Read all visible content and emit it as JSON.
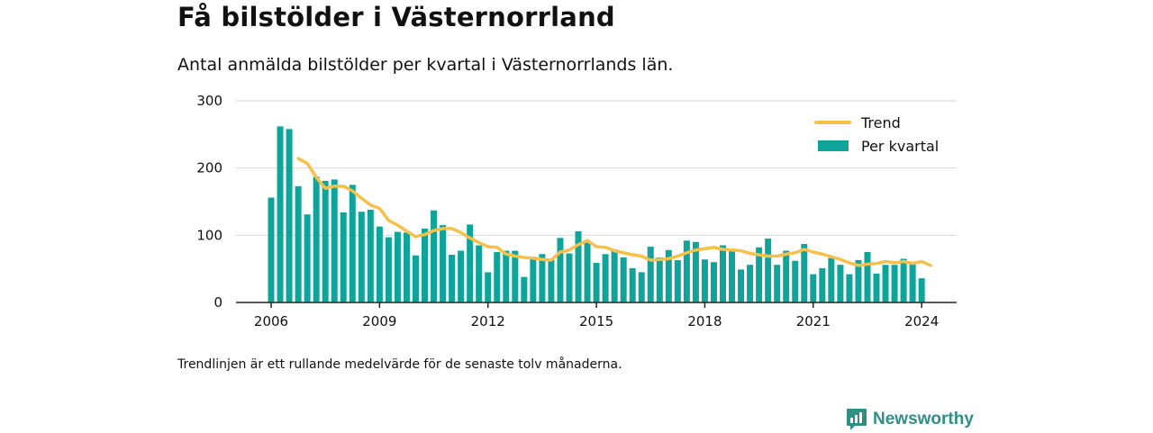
{
  "header": {
    "title": "Få bilstölder i Västernorrland",
    "subtitle": "Antal anmälda bilstölder per kvartal i Västernorrlands län."
  },
  "footer": {
    "note": "Trendlinjen är ett rullande medelvärde för de senaste tolv månaderna.",
    "brand": "Newsworthy"
  },
  "colors": {
    "bars": "#0fa49a",
    "trend": "#f7c04a",
    "grid": "#d9d9d9",
    "axis": "#222222",
    "brand": "#2f8f84"
  },
  "chart_data": {
    "type": "bar",
    "title": "Få bilstölder i Västernorrland",
    "subtitle": "Antal anmälda bilstölder per kvartal i Västernorrlands län.",
    "xlabel": "",
    "ylabel": "",
    "ylim": [
      0,
      300
    ],
    "yticks": [
      0,
      100,
      200,
      300
    ],
    "xticks": [
      "2006",
      "2009",
      "2012",
      "2015",
      "2018",
      "2021",
      "2024"
    ],
    "grid": true,
    "legend_position": "top-right",
    "legend": [
      "Trend",
      "Per kvartal"
    ],
    "x_start": "2006 Q1",
    "series": [
      {
        "name": "Per kvartal",
        "type": "bar",
        "values": [
          156,
          262,
          258,
          173,
          131,
          187,
          181,
          183,
          134,
          175,
          135,
          138,
          113,
          97,
          105,
          104,
          70,
          110,
          137,
          115,
          71,
          77,
          116,
          85,
          45,
          75,
          77,
          77,
          38,
          68,
          72,
          63,
          96,
          73,
          106,
          91,
          59,
          72,
          79,
          67,
          51,
          45,
          83,
          67,
          78,
          63,
          92,
          90,
          64,
          60,
          85,
          78,
          49,
          56,
          82,
          95,
          56,
          77,
          62,
          87,
          42,
          51,
          66,
          56,
          42,
          63,
          75,
          43,
          56,
          56,
          65,
          58,
          36
        ]
      },
      {
        "name": "Trend",
        "type": "line",
        "start_index": 3,
        "values": [
          214,
          207,
          186,
          170,
          173,
          173,
          166,
          155,
          145,
          140,
          122,
          115,
          106,
          98,
          101,
          107,
          110,
          110,
          104,
          96,
          89,
          83,
          82,
          72,
          69,
          67,
          66,
          64,
          63,
          75,
          78,
          86,
          92,
          83,
          82,
          77,
          74,
          71,
          69,
          63,
          64,
          65,
          69,
          74,
          78,
          80,
          82,
          79,
          78,
          77,
          73,
          71,
          69,
          69,
          72,
          74,
          79,
          75,
          72,
          68,
          64,
          59,
          55,
          57,
          58,
          61,
          59,
          61,
          58,
          61,
          55
        ]
      }
    ]
  }
}
